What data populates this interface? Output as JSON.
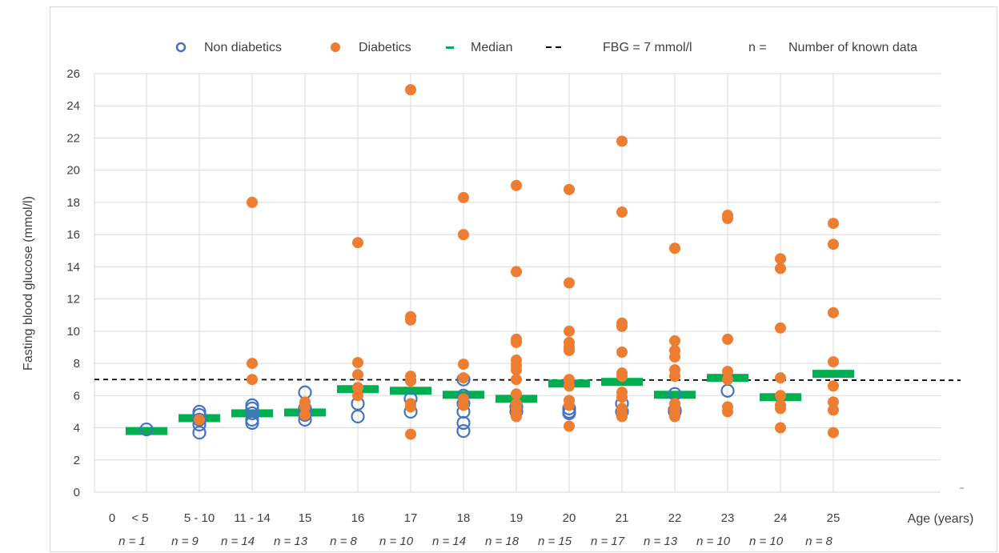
{
  "chart_data": {
    "type": "scatter",
    "title": "",
    "ylabel": "Fasting blood glucose (mmol/l)",
    "xlabel": "Age (years)",
    "ylim": [
      0,
      26
    ],
    "yticks": [
      0,
      2,
      4,
      6,
      8,
      10,
      12,
      14,
      16,
      18,
      20,
      22,
      24,
      26
    ],
    "grid": "vertical and horizontal",
    "legend_position": "top",
    "x_origin_label": "0",
    "categories": [
      "< 5",
      "5 - 10",
      "11 - 14",
      "15",
      "16",
      "17",
      "18",
      "19",
      "20",
      "21",
      "22",
      "23",
      "24",
      "25"
    ],
    "n_labels": [
      "n = 1",
      "n = 9",
      "n = 14",
      "n = 13",
      "n = 8",
      "n = 10",
      "n = 14",
      "n = 18",
      "n = 15",
      "n = 17",
      "n = 13",
      "n = 10",
      "n = 10",
      "n = 8"
    ],
    "legend": [
      {
        "symbol": "open-circle",
        "label": "Non diabetics"
      },
      {
        "symbol": "filled-circle",
        "label": "Diabetics"
      },
      {
        "symbol": "dash",
        "label": "Median"
      },
      {
        "symbol": "dashed-line",
        "label": "FBG = 7 mmol/l"
      },
      {
        "symbol": "text",
        "key": "n =",
        "label": "Number of known data"
      }
    ],
    "threshold": 7,
    "median": [
      3.8,
      4.6,
      4.9,
      4.95,
      6.4,
      6.3,
      6.05,
      5.8,
      6.75,
      6.85,
      6.05,
      7.1,
      5.9,
      7.35
    ],
    "series": [
      {
        "name": "Non diabetics",
        "points": [
          [
            0,
            3.9
          ],
          [
            1,
            5.0
          ],
          [
            1,
            4.8
          ],
          [
            1,
            4.5
          ],
          [
            1,
            4.2
          ],
          [
            1,
            3.7
          ],
          [
            2,
            5.4
          ],
          [
            2,
            5.2
          ],
          [
            2,
            4.9
          ],
          [
            2,
            4.5
          ],
          [
            2,
            4.3
          ],
          [
            3,
            6.2
          ],
          [
            3,
            5.2
          ],
          [
            3,
            5.0
          ],
          [
            3,
            4.8
          ],
          [
            3,
            4.5
          ],
          [
            4,
            5.5
          ],
          [
            4,
            4.7
          ],
          [
            5,
            5.8
          ],
          [
            5,
            5.0
          ],
          [
            6,
            7.0
          ],
          [
            6,
            6.0
          ],
          [
            6,
            5.5
          ],
          [
            6,
            5.0
          ],
          [
            6,
            4.3
          ],
          [
            6,
            3.8
          ],
          [
            7,
            5.3
          ],
          [
            7,
            5.0
          ],
          [
            8,
            6.8
          ],
          [
            8,
            5.2
          ],
          [
            8,
            5.0
          ],
          [
            8,
            4.9
          ],
          [
            9,
            5.5
          ],
          [
            9,
            5.0
          ],
          [
            10,
            6.1
          ],
          [
            10,
            5.1
          ],
          [
            10,
            5.0
          ],
          [
            11,
            6.3
          ]
        ]
      },
      {
        "name": "Diabetics",
        "points": [
          [
            1,
            4.5
          ],
          [
            2,
            18.0
          ],
          [
            2,
            8.0
          ],
          [
            2,
            7.0
          ],
          [
            3,
            5.6
          ],
          [
            3,
            5.3
          ],
          [
            3,
            4.8
          ],
          [
            4,
            15.5
          ],
          [
            4,
            8.05
          ],
          [
            4,
            7.3
          ],
          [
            4,
            6.5
          ],
          [
            4,
            6.0
          ],
          [
            5,
            25.0
          ],
          [
            5,
            10.9
          ],
          [
            5,
            10.7
          ],
          [
            5,
            7.2
          ],
          [
            5,
            6.9
          ],
          [
            5,
            5.5
          ],
          [
            5,
            5.3
          ],
          [
            5,
            3.6
          ],
          [
            6,
            18.3
          ],
          [
            6,
            16.0
          ],
          [
            6,
            7.95
          ],
          [
            6,
            7.1
          ],
          [
            6,
            5.8
          ],
          [
            6,
            5.4
          ],
          [
            7,
            19.05
          ],
          [
            7,
            13.7
          ],
          [
            7,
            9.5
          ],
          [
            7,
            9.3
          ],
          [
            7,
            8.2
          ],
          [
            7,
            7.9
          ],
          [
            7,
            7.6
          ],
          [
            7,
            7.0
          ],
          [
            7,
            6.1
          ],
          [
            7,
            5.5
          ],
          [
            7,
            5.2
          ],
          [
            7,
            4.9
          ],
          [
            7,
            4.7
          ],
          [
            8,
            18.8
          ],
          [
            8,
            13.0
          ],
          [
            8,
            10.0
          ],
          [
            8,
            9.3
          ],
          [
            8,
            9.0
          ],
          [
            8,
            8.8
          ],
          [
            8,
            7.0
          ],
          [
            8,
            6.6
          ],
          [
            8,
            5.7
          ],
          [
            8,
            5.4
          ],
          [
            8,
            4.1
          ],
          [
            9,
            21.8
          ],
          [
            9,
            17.4
          ],
          [
            9,
            10.5
          ],
          [
            9,
            10.3
          ],
          [
            9,
            8.7
          ],
          [
            9,
            7.4
          ],
          [
            9,
            7.2
          ],
          [
            9,
            6.2
          ],
          [
            9,
            5.9
          ],
          [
            9,
            5.2
          ],
          [
            9,
            4.9
          ],
          [
            9,
            4.7
          ],
          [
            10,
            15.15
          ],
          [
            10,
            9.4
          ],
          [
            10,
            8.8
          ],
          [
            10,
            8.4
          ],
          [
            10,
            7.6
          ],
          [
            10,
            7.2
          ],
          [
            10,
            5.5
          ],
          [
            10,
            5.2
          ],
          [
            10,
            4.9
          ],
          [
            10,
            4.7
          ],
          [
            11,
            17.2
          ],
          [
            11,
            17.0
          ],
          [
            11,
            9.5
          ],
          [
            11,
            7.5
          ],
          [
            11,
            7.0
          ],
          [
            11,
            5.3
          ],
          [
            11,
            5.0
          ],
          [
            12,
            14.5
          ],
          [
            12,
            13.9
          ],
          [
            12,
            10.2
          ],
          [
            12,
            7.1
          ],
          [
            12,
            6.0
          ],
          [
            12,
            5.4
          ],
          [
            12,
            5.2
          ],
          [
            12,
            4.0
          ],
          [
            13,
            16.7
          ],
          [
            13,
            15.4
          ],
          [
            13,
            11.15
          ],
          [
            13,
            8.1
          ],
          [
            13,
            6.6
          ],
          [
            13,
            5.6
          ],
          [
            13,
            5.1
          ],
          [
            13,
            3.7
          ]
        ]
      }
    ],
    "colors": {
      "non_diabetic": "#4472C4",
      "diabetic": "#ED7D31",
      "median": "#00B050",
      "threshold": "#000000",
      "grid": "#d9d9d9",
      "text": "#404040"
    }
  }
}
